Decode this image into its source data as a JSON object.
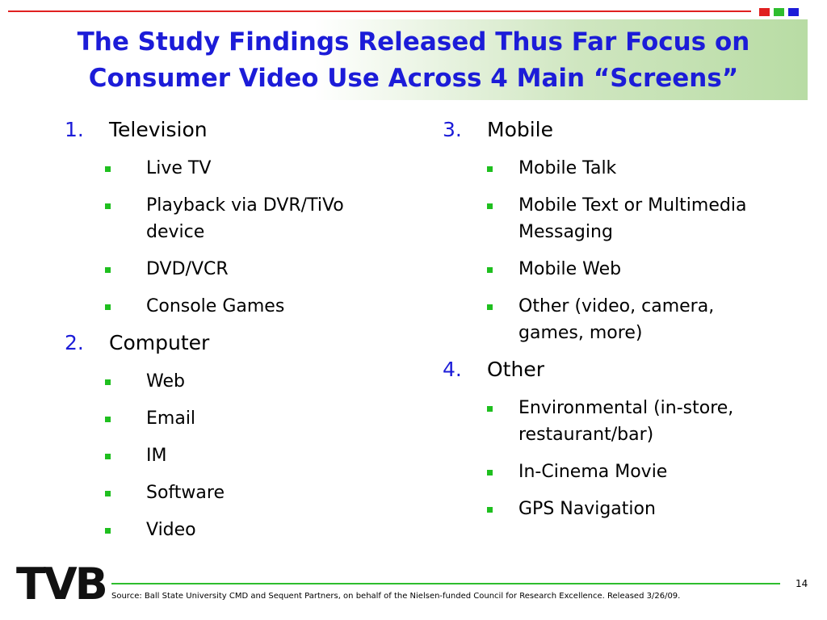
{
  "header": {
    "title": [
      "The Study Findings Released Thus Far Focus on",
      "Consumer Video Use Across 4 Main “Screens”"
    ]
  },
  "columns": [
    {
      "sections": [
        {
          "number": "1.",
          "heading": "Television",
          "items": [
            "Live TV",
            "Playback via DVR/TiVo device",
            "DVD/VCR",
            "Console Games"
          ]
        },
        {
          "number": "2.",
          "heading": "Computer",
          "items": [
            "Web",
            "Email",
            "IM",
            "Software",
            "Video"
          ]
        }
      ]
    },
    {
      "sections": [
        {
          "number": "3.",
          "heading": "Mobile",
          "items": [
            "Mobile Talk",
            "Mobile Text or Multimedia Messaging",
            "Mobile Web",
            "Other (video, camera, games, more)"
          ]
        },
        {
          "number": "4.",
          "heading": "Other",
          "items": [
            "Environmental (in-store, restaurant/bar)",
            "In-Cinema Movie",
            "GPS Navigation"
          ]
        }
      ]
    }
  ],
  "footer": {
    "logo": "TVB",
    "page_number": "14",
    "source": "Source: Ball State University CMD and Sequent Partners, on behalf of the Nielsen-funded Council for Research Excellence.  Released 3/26/09."
  }
}
